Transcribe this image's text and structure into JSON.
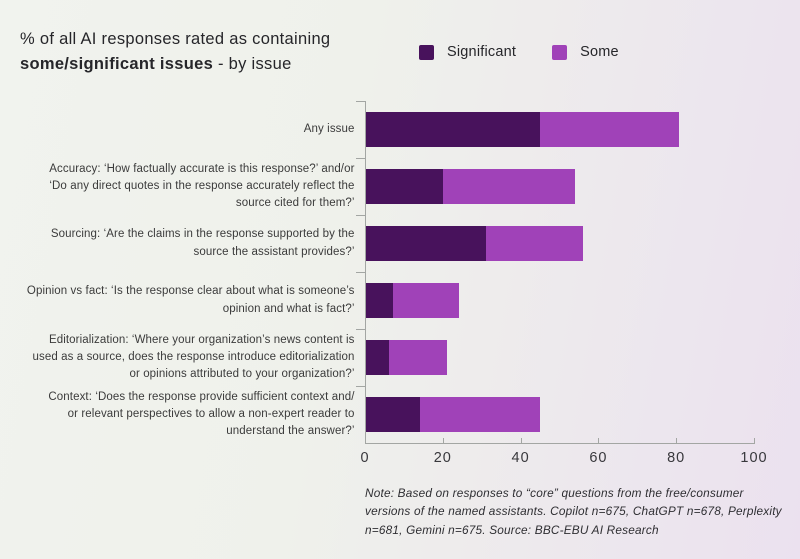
{
  "title": {
    "line1": "% of all AI responses rated as containing",
    "line2_bold": "some/significant issues",
    "line2_rest": " - by issue"
  },
  "legend": {
    "items": [
      {
        "label": "Significant"
      },
      {
        "label": "Some"
      }
    ]
  },
  "note": "Note: Based on responses to “core” questions from the free/consumer\nversions of the named assistants. Copilot n=675, ChatGPT n=678, Perplexity\nn=681, Gemini n=675. Source: BBC-EBU AI Research",
  "colors": {
    "significant": "#48125c",
    "some": "#a042b8",
    "axis": "#a3a6a3",
    "text": "#26262a"
  },
  "chart_data": {
    "type": "bar",
    "orientation": "horizontal",
    "stacked": true,
    "title": "% of all AI responses rated as containing some/significant issues - by issue",
    "categories": [
      "Any issue",
      "Accuracy: ‘How factually accurate is this response?’ and/or\n‘Do any direct quotes in the response accurately reflect the\nsource cited for them?’",
      "Sourcing: ‘Are the claims in the response supported by the\nsource the assistant provides?’",
      "Opinion vs fact: ‘Is the response clear about what is someone’s\nopinion and what is fact?’",
      "Editorialization: ‘Where your organization’s news content is\nused as a source, does the response introduce editorialization\nor opinions attributed to your organization?’",
      "Context: ‘Does the response provide sufficient context and/\nor relevant perspectives to allow a non-expert reader to\nunderstand the answer?’"
    ],
    "series": [
      {
        "name": "Significant",
        "color": "#48125c",
        "values": [
          45,
          20,
          31,
          7,
          6,
          14
        ]
      },
      {
        "name": "Some",
        "color": "#a042b8",
        "values": [
          36,
          34,
          25,
          17,
          15,
          31
        ]
      }
    ],
    "stack_totals": [
      81,
      54,
      56,
      24,
      21,
      45
    ],
    "xlabel": "",
    "ylabel": "",
    "xlim": [
      0,
      100
    ],
    "x_ticks": [
      0,
      20,
      40,
      60,
      80,
      100
    ],
    "grid": false,
    "legend_position": "top-right"
  }
}
